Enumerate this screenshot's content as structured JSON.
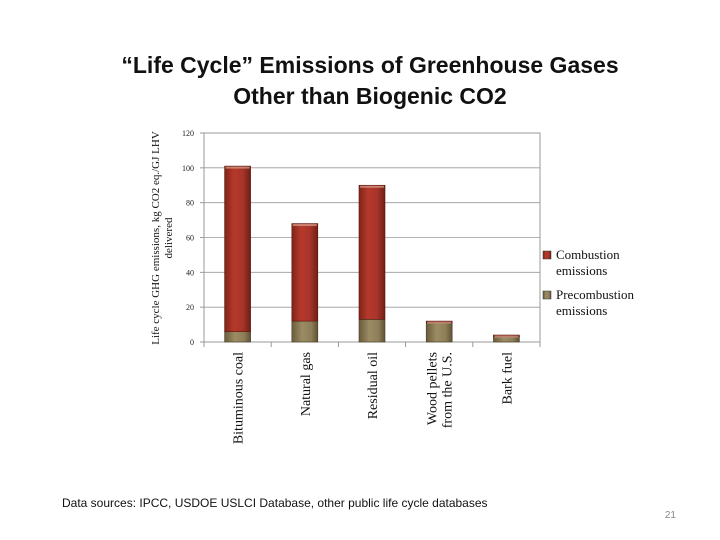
{
  "slide": {
    "title_line1": "“Life Cycle” Emissions of Greenhouse Gases",
    "title_line2": "Other than Biogenic CO2",
    "footer": "Data sources: IPCC, USDOE USLCI Database, other public life cycle databases",
    "page_number": "21"
  },
  "chart_data": {
    "type": "bar",
    "stacked": true,
    "title": "",
    "xlabel": "",
    "ylabel": "Life cycle GHG emissions, kg CO2 eq./GJ LHV delivered",
    "ylim": [
      0,
      120
    ],
    "yticks": [
      0,
      20,
      40,
      60,
      80,
      100,
      120
    ],
    "grid": true,
    "legend_position": "right",
    "categories": [
      "Bituminous coal",
      "Natural gas",
      "Residual oil",
      "Wood pellets from the U.S.",
      "Bark fuel"
    ],
    "category_label_lines": [
      [
        "Bituminous coal"
      ],
      [
        "Natural gas"
      ],
      [
        "Residual oil"
      ],
      [
        "Wood pellets",
        "from the U.S."
      ],
      [
        "Bark fuel"
      ]
    ],
    "series": [
      {
        "name": "Precombustion emissions",
        "color": "#8a7a55",
        "values": [
          6,
          12,
          13,
          11,
          3
        ]
      },
      {
        "name": "Combustion emissions",
        "color": "#b03a2e",
        "values": [
          95,
          56,
          77,
          1,
          1
        ]
      }
    ],
    "legend_label_lines": [
      [
        "Combustion",
        "emissions"
      ],
      [
        "Precombustion",
        "emissions"
      ]
    ]
  }
}
